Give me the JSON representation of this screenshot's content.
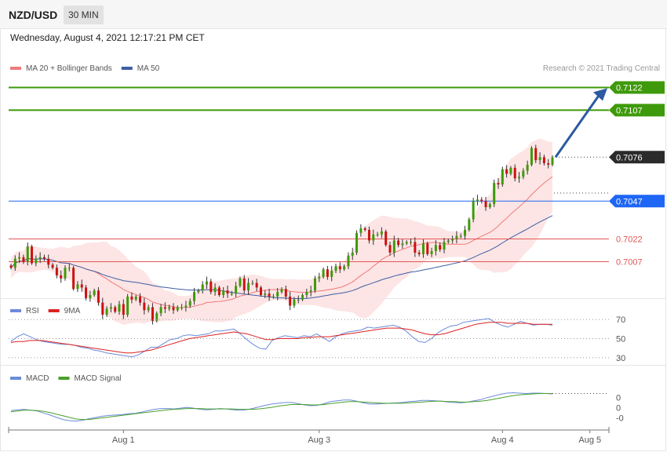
{
  "header": {
    "pair": "NZD/USD",
    "timeframe": "30 MIN"
  },
  "timestamp": "Wednesday, August 4, 2021 12:17:21 PM CET",
  "credit": "Research © 2021 Trading Central",
  "colors": {
    "support": "#e35656",
    "resistance": "#3e9a0a",
    "pivot": "#1e66f5",
    "current": "#2b2b2b",
    "ma20": "#f07a7a",
    "band": "#fde1e1",
    "ma50": "#3d5fa3",
    "bull": "#3e9a0a",
    "bear": "#cc1111",
    "arrow": "#2c5aa0",
    "rsi": "#6b8ad9",
    "rsi_ma": "#dd2222",
    "macd": "#6b8ad9",
    "macd_signal": "#4aa02c"
  },
  "chart_data": [
    {
      "type": "candlestick",
      "legend": [
        "MA 20 + Bollinger Bands",
        "MA 50"
      ],
      "legend_position": "top-left",
      "ylim": [
        6985,
        7130
      ],
      "levels": [
        {
          "label": "0.7122",
          "value": 7122,
          "kind": "resistance"
        },
        {
          "label": "0.7107",
          "value": 7107,
          "kind": "resistance"
        },
        {
          "label": "0.7076",
          "value": 7076,
          "kind": "current"
        },
        {
          "label": "0.7047",
          "value": 7047,
          "kind": "pivot"
        },
        {
          "label": "0.7022",
          "value": 7022,
          "kind": "support"
        },
        {
          "label": "0.7007",
          "value": 7007,
          "kind": "support"
        }
      ],
      "x_ticks": [
        {
          "label": "Aug 1",
          "index": 27
        },
        {
          "label": "Aug 3",
          "index": 74
        },
        {
          "label": "Aug 4",
          "index": 118
        },
        {
          "label": "Aug 5",
          "index": 139
        }
      ],
      "close": [
        7003,
        7009,
        7010,
        7007,
        7017,
        7006,
        7009,
        7010,
        7009,
        7005,
        7003,
        6998,
        6996,
        7003,
        7003,
        6989,
        6992,
        6990,
        6983,
        6985,
        6988,
        6980,
        6972,
        6976,
        6977,
        6974,
        6979,
        6972,
        6984,
        6982,
        6984,
        6980,
        6975,
        6977,
        6968,
        6973,
        6977,
        6976,
        6977,
        6975,
        6977,
        6977,
        6978,
        6981,
        6987,
        6988,
        6992,
        6994,
        6987,
        6990,
        6985,
        6988,
        6986,
        6986,
        6991,
        6996,
        6988,
        6993,
        6993,
        6990,
        6985,
        6986,
        6984,
        6984,
        6987,
        6989,
        6984,
        6978,
        6982,
        6982,
        6985,
        6987,
        6988,
        6996,
        6997,
        7002,
        6997,
        7001,
        7004,
        7002,
        7004,
        7011,
        7013,
        7026,
        7029,
        7028,
        7021,
        7025,
        7025,
        7027,
        7018,
        7013,
        7021,
        7018,
        7019,
        7020,
        7020,
        7013,
        7012,
        7019,
        7012,
        7014,
        7018,
        7015,
        7020,
        7021,
        7022,
        7024,
        7024,
        7028,
        7035,
        7047,
        7048,
        7047,
        7043,
        7045,
        7059,
        7058,
        7068,
        7065,
        7069,
        7062,
        7063,
        7067,
        7071,
        7082,
        7074,
        7076,
        7072,
        7071,
        7076
      ],
      "last_index": 139
    },
    {
      "type": "line",
      "title": "RSI",
      "legend": [
        "RSI",
        "9MA"
      ],
      "legend_position": "top-left",
      "ylim": [
        25,
        75
      ],
      "y_ticks": [
        70,
        50,
        30
      ],
      "series": [
        {
          "name": "RSI",
          "values": [
            47,
            52,
            55,
            52,
            49,
            47,
            46,
            45,
            44,
            44,
            43,
            41,
            40,
            38,
            37,
            35,
            34,
            33,
            32,
            31,
            33,
            37,
            41,
            41,
            45,
            49,
            50,
            53,
            54,
            53,
            54,
            55,
            58,
            58,
            59,
            60,
            55,
            49,
            44,
            40,
            39,
            48,
            51,
            53,
            52,
            51,
            53,
            52,
            55,
            51,
            47,
            52,
            55,
            57,
            58,
            59,
            62,
            61,
            62,
            63,
            64,
            62,
            58,
            52,
            47,
            46,
            50,
            56,
            60,
            63,
            64,
            67,
            68,
            69,
            70,
            71,
            67,
            64,
            62,
            65,
            68,
            66,
            64,
            65,
            65,
            64
          ]
        },
        {
          "name": "9MA",
          "values": [
            46,
            47,
            47,
            48,
            48,
            48,
            47,
            46,
            45,
            44,
            43,
            42,
            41,
            40,
            39,
            38,
            37,
            36,
            35,
            35,
            36,
            37,
            38,
            40,
            42,
            44,
            46,
            48,
            50,
            51,
            52,
            53,
            54,
            55,
            56,
            57,
            56,
            55,
            53,
            51,
            49,
            49,
            50,
            50,
            50,
            50,
            51,
            51,
            52,
            52,
            52,
            53,
            54,
            55,
            56,
            57,
            58,
            59,
            60,
            61,
            61,
            61,
            60,
            59,
            57,
            55,
            54,
            54,
            55,
            57,
            59,
            61,
            63,
            65,
            66,
            67,
            67,
            67,
            66,
            66,
            66,
            66,
            65,
            65,
            65,
            65
          ]
        }
      ]
    },
    {
      "type": "line",
      "title": "MACD",
      "legend": [
        "MACD",
        "MACD Signal"
      ],
      "legend_position": "top-left",
      "ylim": [
        -8,
        4
      ],
      "y_tick_labels": [
        {
          "label": "0",
          "value": 0
        },
        {
          "label": "0",
          "value": -2.5
        },
        {
          "label": "-0",
          "value": -5
        }
      ],
      "series": [
        {
          "name": "MACD",
          "values": [
            -3.2,
            -3.0,
            -2.9,
            -3.1,
            -3.3,
            -3.8,
            -4.3,
            -4.9,
            -5.4,
            -5.7,
            -5.8,
            -5.6,
            -5.2,
            -4.9,
            -4.6,
            -4.4,
            -4.3,
            -4.2,
            -4.0,
            -3.9,
            -3.6,
            -3.2,
            -2.9,
            -2.7,
            -2.7,
            -2.8,
            -2.6,
            -2.4,
            -2.6,
            -2.9,
            -3.0,
            -2.9,
            -2.7,
            -2.8,
            -3.0,
            -3.1,
            -3.0,
            -2.7,
            -2.3,
            -1.9,
            -1.6,
            -1.4,
            -1.2,
            -1.2,
            -1.5,
            -1.8,
            -2.0,
            -1.9,
            -1.5,
            -1.0,
            -0.8,
            -0.6,
            -0.6,
            -0.9,
            -1.3,
            -1.6,
            -1.6,
            -1.5,
            -1.4,
            -1.3,
            -1.2,
            -1.0,
            -0.9,
            -0.7,
            -0.7,
            -0.8,
            -0.9,
            -1.1,
            -1.2,
            -1.3,
            -1.1,
            -0.8,
            -0.5,
            0.0,
            0.4,
            0.8,
            1.1,
            1.2,
            1.1,
            1.0,
            1.1,
            1.1,
            1.0,
            0.9
          ]
        },
        {
          "name": "MACD Signal",
          "values": [
            -3.5,
            -3.3,
            -3.1,
            -3.1,
            -3.2,
            -3.4,
            -3.7,
            -4.1,
            -4.5,
            -4.9,
            -5.3,
            -5.4,
            -5.4,
            -5.2,
            -5.0,
            -4.8,
            -4.6,
            -4.4,
            -4.2,
            -4.0,
            -3.8,
            -3.6,
            -3.4,
            -3.2,
            -3.0,
            -2.9,
            -2.8,
            -2.7,
            -2.7,
            -2.7,
            -2.8,
            -2.8,
            -2.8,
            -2.8,
            -2.8,
            -2.9,
            -2.9,
            -2.9,
            -2.8,
            -2.6,
            -2.4,
            -2.1,
            -1.9,
            -1.7,
            -1.7,
            -1.7,
            -1.8,
            -1.8,
            -1.7,
            -1.5,
            -1.3,
            -1.1,
            -1.0,
            -1.0,
            -1.1,
            -1.2,
            -1.3,
            -1.4,
            -1.4,
            -1.4,
            -1.4,
            -1.3,
            -1.2,
            -1.1,
            -1.0,
            -0.9,
            -0.9,
            -1.0,
            -1.0,
            -1.1,
            -1.1,
            -1.0,
            -0.9,
            -0.7,
            -0.4,
            -0.1,
            0.2,
            0.5,
            0.7,
            0.8,
            0.9,
            1.0,
            1.0,
            1.0
          ]
        }
      ]
    }
  ]
}
